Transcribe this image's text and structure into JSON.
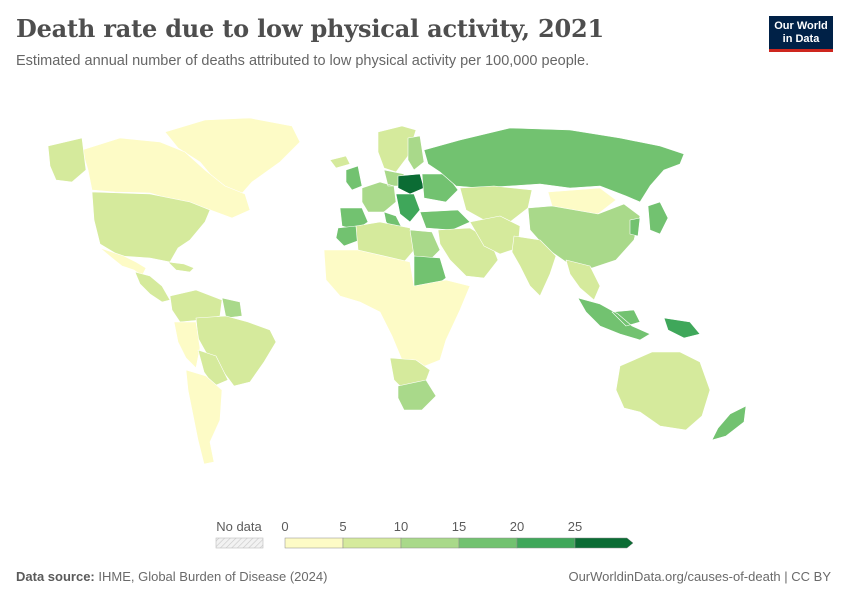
{
  "header": {
    "title": "Death rate due to low physical activity, 2021",
    "subtitle": "Estimated annual number of deaths attributed to low physical activity per 100,000 people."
  },
  "logo": {
    "line1": "Our World",
    "line2": "in Data"
  },
  "legend": {
    "no_data_label": "No data",
    "ticks": [
      "0",
      "5",
      "10",
      "15",
      "20",
      "25"
    ],
    "colors": [
      "#fdfbc6",
      "#d5ea9c",
      "#a9d98a",
      "#72c270",
      "#3fa75a",
      "#0b6c34"
    ],
    "no_data_pattern": "hatched-gray"
  },
  "footer": {
    "source_label": "Data source:",
    "source_text": "IHME, Global Burden of Disease (2024)",
    "link": "OurWorldinData.org/causes-of-death | CC BY"
  },
  "map_regions": [
    {
      "region": "Greenland",
      "band": "0-5",
      "color": "#fdfbc6"
    },
    {
      "region": "Canada",
      "band": "0-5",
      "color": "#fdfbc6"
    },
    {
      "region": "Alaska",
      "band": "5-10",
      "color": "#d5ea9c"
    },
    {
      "region": "United States",
      "band": "5-10",
      "color": "#d5ea9c"
    },
    {
      "region": "Mexico",
      "band": "0-5",
      "color": "#fdfbc6"
    },
    {
      "region": "Central America",
      "band": "5-10",
      "color": "#d5ea9c"
    },
    {
      "region": "Caribbean",
      "band": "5-10",
      "color": "#d5ea9c"
    },
    {
      "region": "Colombia / Venezuela",
      "band": "5-10",
      "color": "#d5ea9c"
    },
    {
      "region": "Guyana / Suriname",
      "band": "10-15",
      "color": "#a9d98a"
    },
    {
      "region": "Brazil",
      "band": "5-10",
      "color": "#d5ea9c"
    },
    {
      "region": "Peru",
      "band": "0-5",
      "color": "#fdfbc6"
    },
    {
      "region": "Bolivia / Paraguay",
      "band": "5-10",
      "color": "#d5ea9c"
    },
    {
      "region": "Chile / Argentina",
      "band": "0-5",
      "color": "#fdfbc6"
    },
    {
      "region": "Iceland / Norway / Sweden",
      "band": "5-10",
      "color": "#d5ea9c"
    },
    {
      "region": "Finland",
      "band": "10-15",
      "color": "#a9d98a"
    },
    {
      "region": "United Kingdom",
      "band": "15-20",
      "color": "#72c270"
    },
    {
      "region": "Western Europe",
      "band": "10-15",
      "color": "#a9d98a"
    },
    {
      "region": "Spain / Portugal",
      "band": "15-20",
      "color": "#72c270"
    },
    {
      "region": "Italy",
      "band": "15-20",
      "color": "#72c270"
    },
    {
      "region": "Poland / Czechia",
      "band": "25+",
      "color": "#0b6c34"
    },
    {
      "region": "Hungary / Balkans",
      "band": "20-25",
      "color": "#3fa75a"
    },
    {
      "region": "Ukraine / Belarus",
      "band": "15-20",
      "color": "#72c270"
    },
    {
      "region": "Russia",
      "band": "15-20",
      "color": "#72c270"
    },
    {
      "region": "Kazakhstan / Central Asia",
      "band": "5-10",
      "color": "#d5ea9c"
    },
    {
      "region": "Mongolia",
      "band": "0-5",
      "color": "#fdfbc6"
    },
    {
      "region": "China",
      "band": "10-15",
      "color": "#a9d98a"
    },
    {
      "region": "Korea / Japan",
      "band": "15-20",
      "color": "#72c270"
    },
    {
      "region": "Turkey / Caucasus",
      "band": "15-20",
      "color": "#72c270"
    },
    {
      "region": "Middle East",
      "band": "5-10",
      "color": "#d5ea9c"
    },
    {
      "region": "Iran / Afghanistan",
      "band": "5-10",
      "color": "#d5ea9c"
    },
    {
      "region": "India / South Asia",
      "band": "5-10",
      "color": "#d5ea9c"
    },
    {
      "region": "Southeast Asia mainland",
      "band": "5-10",
      "color": "#d5ea9c"
    },
    {
      "region": "Malaysia / Indonesia",
      "band": "15-20",
      "color": "#72c270"
    },
    {
      "region": "Papua",
      "band": "20-25",
      "color": "#3fa75a"
    },
    {
      "region": "Morocco",
      "band": "15-20",
      "color": "#72c270"
    },
    {
      "region": "Algeria / Tunisia / Libya",
      "band": "5-10",
      "color": "#d5ea9c"
    },
    {
      "region": "Egypt",
      "band": "10-15",
      "color": "#a9d98a"
    },
    {
      "region": "Sudan",
      "band": "15-20",
      "color": "#72c270"
    },
    {
      "region": "Sub-Saharan Africa",
      "band": "0-5",
      "color": "#fdfbc6"
    },
    {
      "region": "Namibia / Botswana / Zimbabwe",
      "band": "5-10",
      "color": "#d5ea9c"
    },
    {
      "region": "South Africa",
      "band": "10-15",
      "color": "#a9d98a"
    },
    {
      "region": "Australia",
      "band": "5-10",
      "color": "#d5ea9c"
    },
    {
      "region": "New Zealand",
      "band": "15-20",
      "color": "#72c270"
    }
  ]
}
